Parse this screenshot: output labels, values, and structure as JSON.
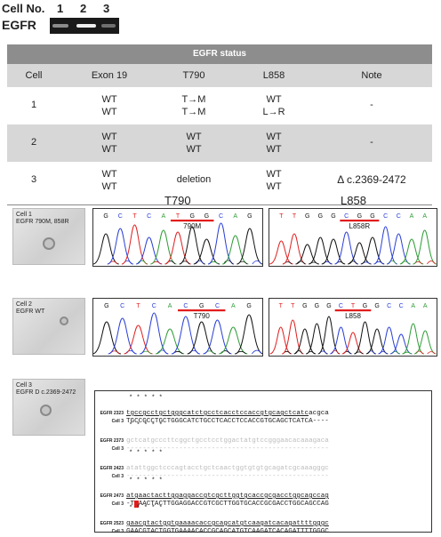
{
  "gel": {
    "title": "Cell No.",
    "lanes": [
      "1",
      "2",
      "3"
    ],
    "gene": "EGFR"
  },
  "table": {
    "title": "EGFR status",
    "columns": [
      "Cell",
      "Exon 19",
      "T790",
      "L858",
      "Note"
    ],
    "rows": [
      {
        "cell": "1",
        "exon19": [
          "WT",
          "WT"
        ],
        "t790": [
          "T→M",
          "T→M"
        ],
        "l858": [
          "WT",
          "L→R"
        ],
        "note": "-"
      },
      {
        "cell": "2",
        "exon19": [
          "WT",
          "WT"
        ],
        "t790": [
          "WT",
          "WT"
        ],
        "l858": [
          "WT",
          "WT"
        ],
        "note": "-"
      },
      {
        "cell": "3",
        "exon19": [
          "WT",
          "WT"
        ],
        "t790": [
          "deletion"
        ],
        "l858": [
          "WT",
          "WT"
        ],
        "note": "Δ c.2369-2472"
      }
    ]
  },
  "headers": {
    "t790": "T790",
    "l858": "L858"
  },
  "cells": [
    {
      "label1": "Cell 1",
      "label2": "EGFR 790M, 858R",
      "t790_bases": [
        "G",
        "C",
        "T",
        "C",
        "A",
        "T",
        "G",
        "G",
        "C",
        "A",
        "G"
      ],
      "t790_tag": "790M",
      "l858_bases": [
        "T",
        "T",
        "G",
        "G",
        "G",
        "C",
        "G",
        "G",
        "C",
        "C",
        "A",
        "A"
      ],
      "l858_tag": "L858R"
    },
    {
      "label1": "Cell 2",
      "label2": "EGFR WT",
      "t790_bases": [
        "G",
        "C",
        "T",
        "C",
        "A",
        "C",
        "G",
        "C",
        "A",
        "G"
      ],
      "t790_tag": "T790",
      "l858_bases": [
        "T",
        "T",
        "G",
        "G",
        "G",
        "C",
        "T",
        "G",
        "G",
        "C",
        "C",
        "A",
        "A"
      ],
      "l858_tag": "L858"
    },
    {
      "label1": "Cell 3",
      "label2": "EGFR D c.2369-2472"
    }
  ],
  "colors": {
    "A": "#2e9c35",
    "C": "#2a3fd6",
    "G": "#111111",
    "T": "#e02020",
    "mark": "#e21c1c"
  },
  "alignment": {
    "blocks": [
      {
        "ref_label": "EGFR 2323",
        "ref": "tgccgcctgctgggcatctgcctcacctccaccgtgcagctcatcacgca",
        "cell": "TGCCGCCTGCTGGGCATCTGCCTCACCTCCACCGTGCAGCTCATCA----",
        "faint": false
      },
      {
        "ref_label": "EGFR 2373",
        "ref": "gctcatgcccttcggctgcctcctggactatgtccgggaacacaaagaca",
        "cell": "--------------------------------------------------",
        "faint": true
      },
      {
        "ref_label": "EGFR 2423",
        "ref": "atattggctcccagtacctgctcaactggtgtgtgcagatcgcaaagggc",
        "cell": "--------------------------------------------------",
        "faint": true
      },
      {
        "ref_label": "EGFR 2473",
        "ref": "atgaactacttggaggaccgtcgcttggtgcaccgcgacctggcagccag",
        "cell": "-TGAACTACTTGGAGGACCGTCGCTTGGTGCACCGCGACCTGGCAGCCAG",
        "faint": false
      },
      {
        "ref_label": "EGFR 2523",
        "ref": "gaacgtactggtgaaaacaccgcagcatgtcaagatcacagattttgggc",
        "cell": "GAACGTACTGGTGAAAACACCGCAGCATGTCAAGATCACAGATTTTGGGC",
        "faint": false
      }
    ],
    "cell_label": "Cell 3",
    "star": "*"
  }
}
